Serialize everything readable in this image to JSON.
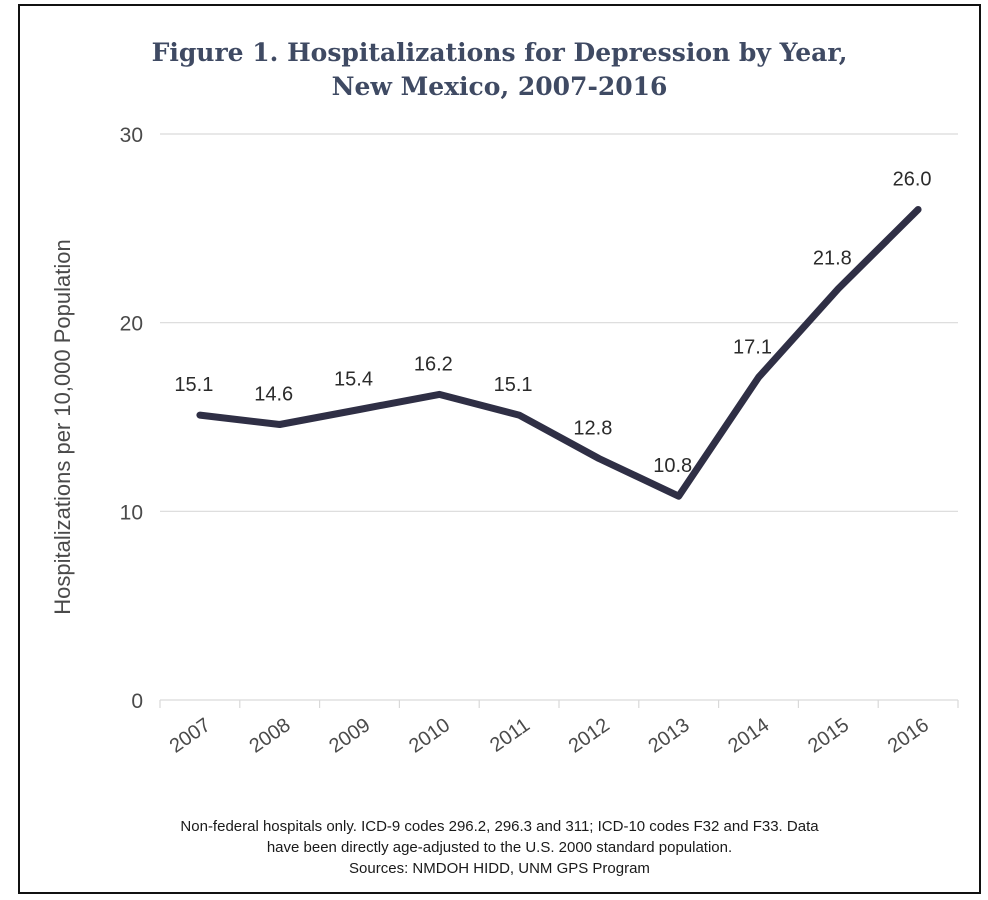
{
  "title_lines": [
    "Figure 1. Hospitalizations for Depression by Year,",
    "New Mexico, 2007-2016"
  ],
  "footnote_lines": [
    "Non-federal hospitals only. ICD-9 codes 296.2, 296.3 and 311; ICD-10 codes F32 and F33. Data",
    "have been directly age-adjusted to the U.S. 2000 standard population.",
    "Sources: NMDOH HIDD, UNM GPS Program"
  ],
  "colors": {
    "line": "#2f2f45",
    "grid": "#d9d9d9",
    "axis_text": "#4a4a4a",
    "title": "#3f4a63"
  },
  "chart_data": {
    "type": "line",
    "title": "Figure 1. Hospitalizations for Depression by Year, New Mexico, 2007-2016",
    "xlabel": "",
    "ylabel": "Hospitalizations  per 10,000  Population",
    "categories": [
      "2007",
      "2008",
      "2009",
      "2010",
      "2011",
      "2012",
      "2013",
      "2014",
      "2015",
      "2016"
    ],
    "series": [
      {
        "values": [
          15.1,
          14.6,
          15.4,
          16.2,
          15.1,
          12.8,
          10.8,
          17.1,
          21.8,
          26.0
        ]
      }
    ],
    "data_labels": [
      "15.1",
      "14.6",
      "15.4",
      "16.2",
      "15.1",
      "12.8",
      "10.8",
      "17.1",
      "21.8",
      "26.0"
    ],
    "ylim": [
      0,
      30
    ],
    "yticks": [
      0,
      10,
      20,
      30
    ],
    "grid": true,
    "legend": "none"
  }
}
